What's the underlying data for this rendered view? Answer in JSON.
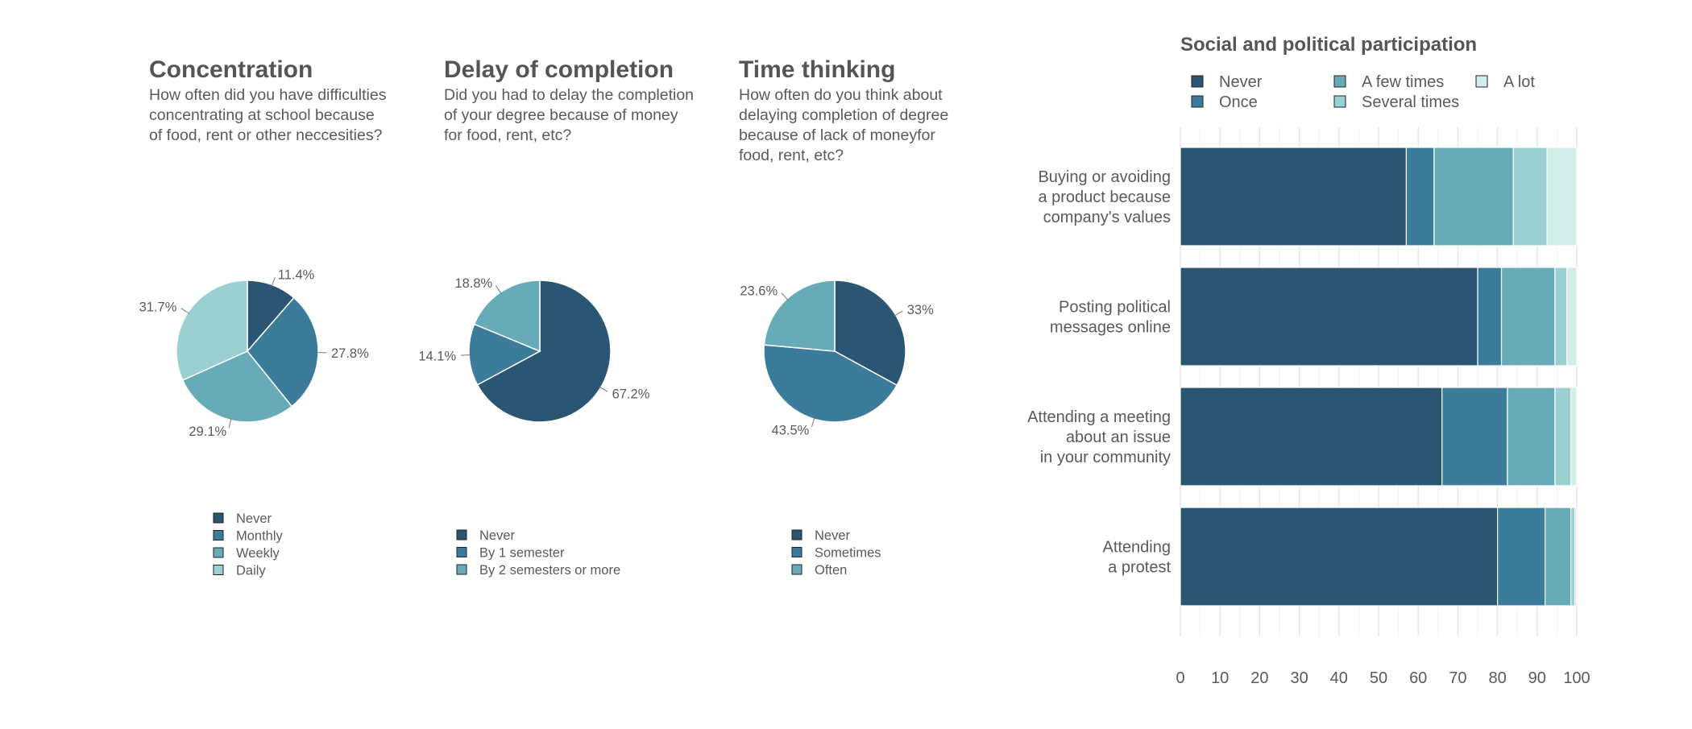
{
  "chart_data": [
    {
      "type": "pie",
      "title": "Concentration",
      "subtitle": [
        "How often did you have difficulties",
        "concentrating at school because",
        "of food, rent or other neccesities?"
      ],
      "categories": [
        "Never",
        "Monthly",
        "Weekly",
        "Daily"
      ],
      "values": [
        11.4,
        27.8,
        29.1,
        31.7
      ],
      "labels": [
        "11.4%",
        "27.8%",
        "29.1%",
        "31.7%"
      ],
      "colors": [
        "#2a5674",
        "#3a7c99",
        "#68abb8",
        "#9bd0d3"
      ],
      "legend_position": "bottom"
    },
    {
      "type": "pie",
      "title": "Delay of completion",
      "subtitle": [
        "Did you had to delay the completion",
        "of your degree because of money",
        "for food, rent, etc?"
      ],
      "categories": [
        "Never",
        "By 1 semester",
        "By 2 semesters or more"
      ],
      "values": [
        67.2,
        14.1,
        18.8
      ],
      "labels": [
        "67.2%",
        "14.1%",
        "18.8%"
      ],
      "colors": [
        "#2a5674",
        "#3a7c99",
        "#68abb8"
      ],
      "legend_position": "bottom"
    },
    {
      "type": "pie",
      "title": "Time thinking",
      "subtitle": [
        "How often do you think about",
        "delaying completion of degree",
        "because of lack of moneyfor",
        "food, rent, etc?"
      ],
      "categories": [
        "Never",
        "Sometimes",
        "Often"
      ],
      "values": [
        33,
        43.5,
        23.6
      ],
      "labels": [
        "33%",
        "43.5%",
        "23.6%"
      ],
      "colors": [
        "#2a5674",
        "#3a7c99",
        "#68abb8"
      ],
      "legend_position": "bottom"
    },
    {
      "type": "bar",
      "orientation": "horizontal",
      "stacked": true,
      "title": "Social and political participation",
      "categories": [
        [
          "Buying or avoiding",
          "a product because",
          "company's values"
        ],
        [
          "Posting political",
          "messages online"
        ],
        [
          "Attending a meeting",
          "about an issue",
          "in your community"
        ],
        [
          "Attending",
          "a protest"
        ]
      ],
      "series": [
        {
          "name": "Never",
          "color": "#2a5674",
          "values": [
            57,
            75,
            66,
            80
          ]
        },
        {
          "name": "Once",
          "color": "#3a7c99",
          "values": [
            7,
            6,
            16.5,
            12
          ]
        },
        {
          "name": "A few times",
          "color": "#68abb8",
          "values": [
            20,
            13.5,
            12,
            6.5
          ]
        },
        {
          "name": "Several times",
          "color": "#9bd0d3",
          "values": [
            8.5,
            3,
            4,
            1
          ]
        },
        {
          "name": "A lot",
          "color": "#d2eeea",
          "values": [
            7.5,
            2.5,
            1.5,
            0.5
          ]
        }
      ],
      "legend_order": [
        "Never",
        "A few times",
        "A lot",
        "Once",
        "Several times"
      ],
      "xlim": [
        0,
        100
      ],
      "xticks": [
        0,
        10,
        20,
        30,
        40,
        50,
        60,
        70,
        80,
        90,
        100
      ],
      "grid": true,
      "legend_position": "top"
    }
  ]
}
